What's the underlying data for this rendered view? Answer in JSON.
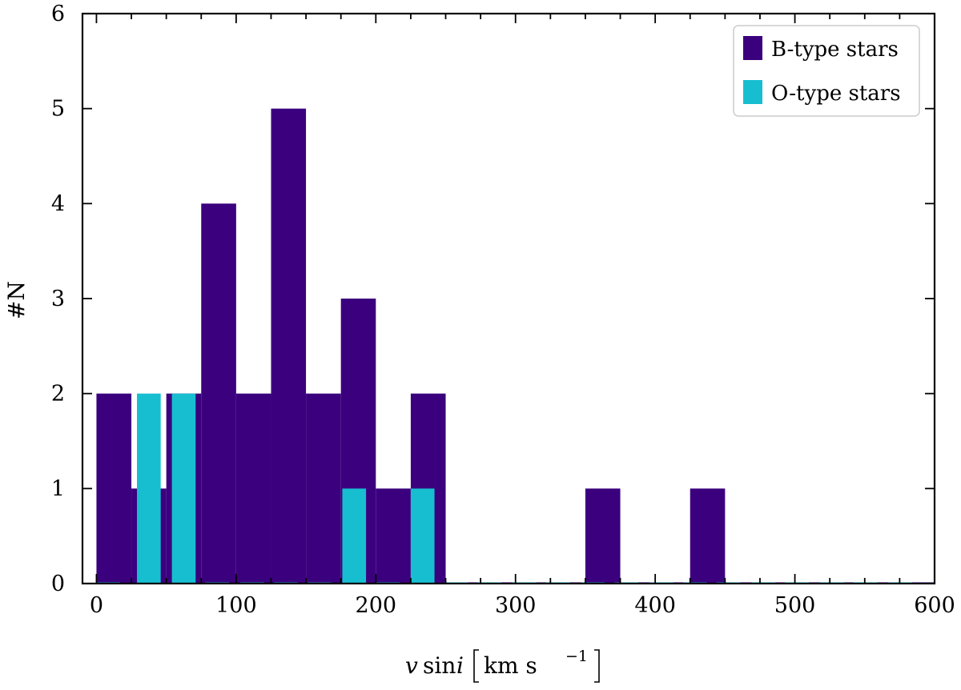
{
  "chart_data": {
    "type": "bar",
    "xlabel_var": "v",
    "xlabel_fn": "sin",
    "xlabel_sub": "i",
    "xlabel_unit": "km s",
    "xlabel_exp": "−1",
    "ylabel": "#N",
    "xlim": [
      -10,
      600
    ],
    "ylim": [
      0,
      6
    ],
    "xticks": [
      0,
      100,
      200,
      300,
      400,
      500,
      600
    ],
    "yticks": [
      0,
      1,
      2,
      3,
      4,
      5,
      6
    ],
    "grid": false,
    "legend_position": "top-right",
    "series": [
      {
        "name": "B-type stars",
        "color": "#3b007e",
        "bin_width": 25,
        "bin_starts": [
          0,
          25,
          50,
          75,
          100,
          125,
          150,
          175,
          200,
          225,
          250,
          275,
          300,
          325,
          350,
          375,
          400,
          425,
          450,
          475,
          500,
          525,
          550,
          575
        ],
        "values": [
          2,
          1,
          2,
          4,
          2,
          5,
          2,
          3,
          1,
          2,
          0,
          0,
          0,
          0,
          1,
          0,
          0,
          1,
          0,
          0,
          0,
          0,
          0,
          0
        ]
      },
      {
        "name": "O-type stars",
        "color": "#17becf",
        "bin_width": 17,
        "bin_starts": [
          0,
          29,
          54,
          78,
          103,
          127,
          151,
          176,
          200,
          225,
          249,
          273,
          298,
          322,
          347,
          371,
          396,
          420,
          444,
          469,
          493,
          518,
          542,
          567
        ],
        "values": [
          0,
          2,
          2,
          0,
          0,
          0,
          0,
          1,
          0,
          1,
          0,
          0,
          0,
          0,
          0,
          0,
          0,
          0,
          0,
          0,
          0,
          0,
          0,
          0
        ]
      }
    ]
  }
}
